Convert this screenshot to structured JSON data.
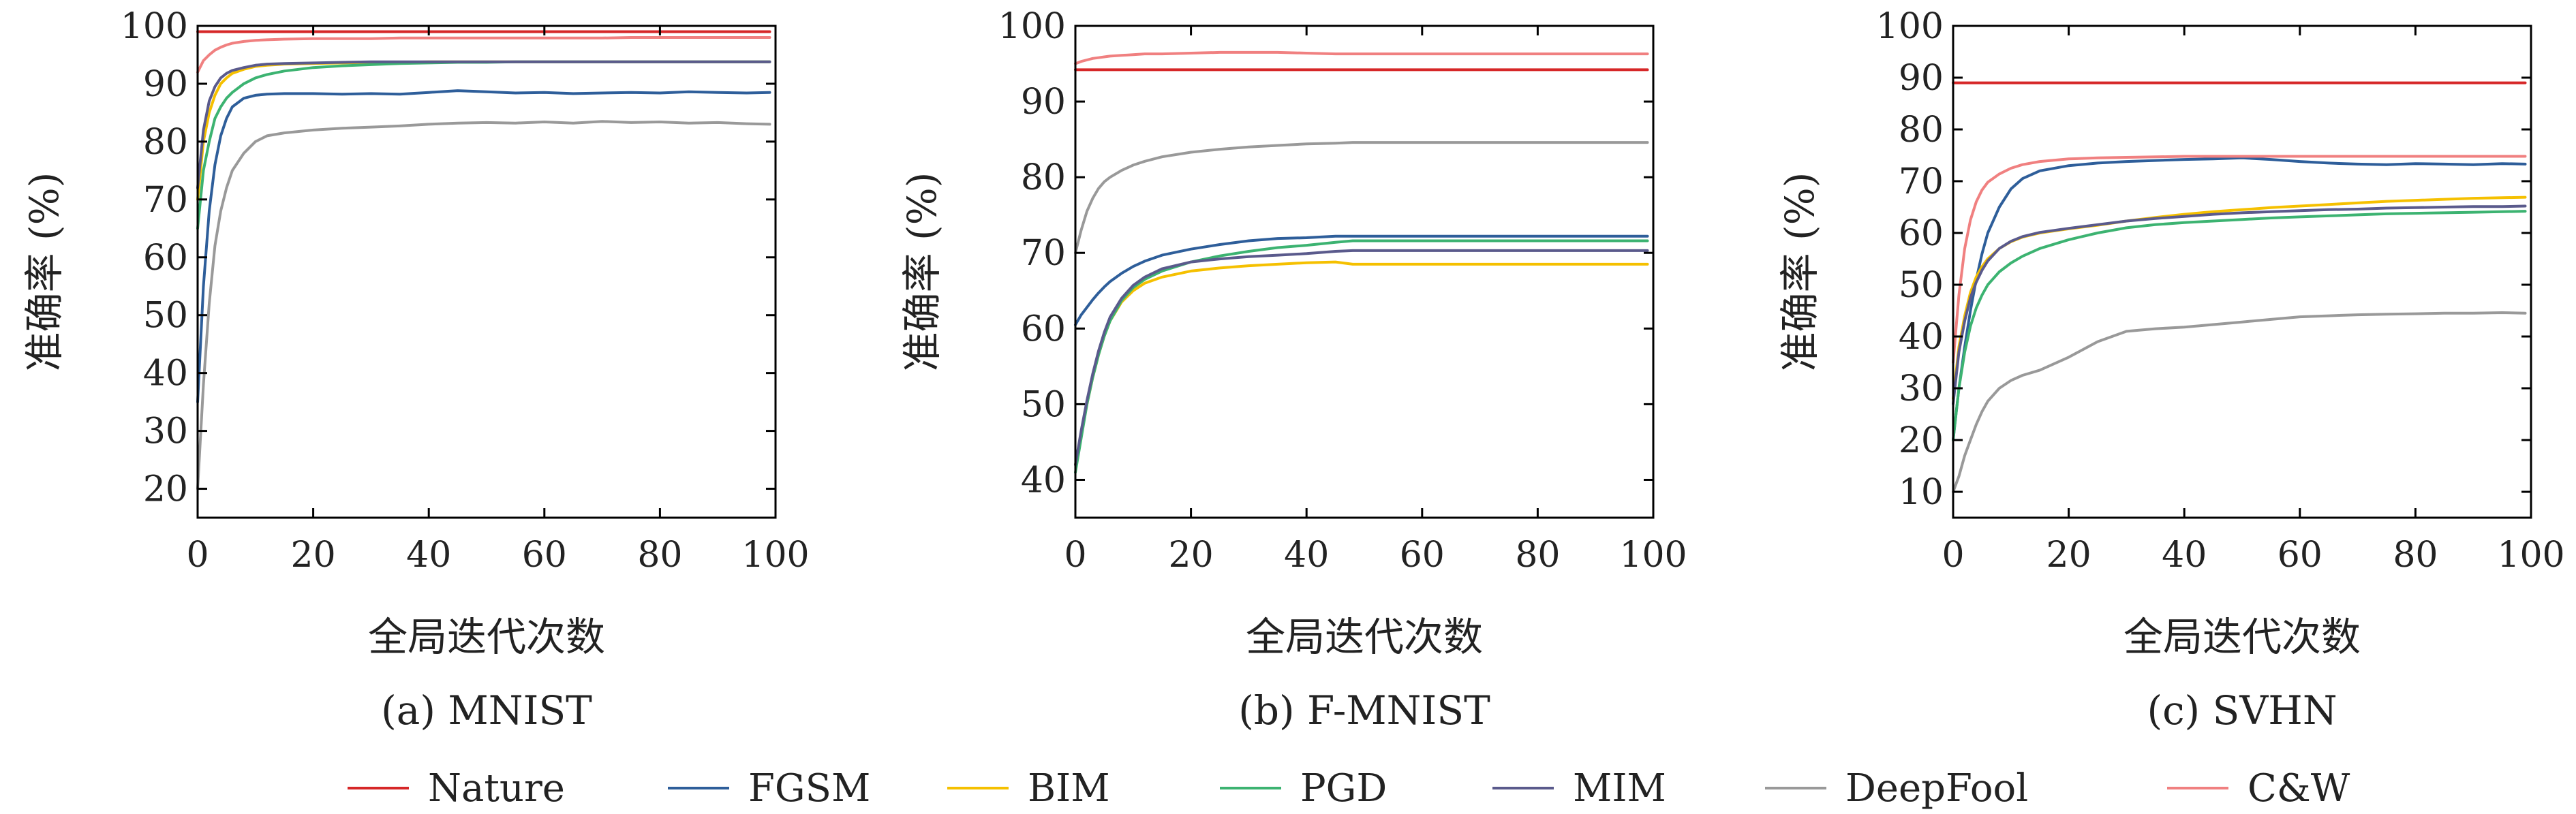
{
  "chart_data": [
    {
      "type": "line",
      "caption": "(a) MNIST",
      "xlabel": "全局迭代次数",
      "ylabel": "准确率 (%)",
      "xlim": [
        0,
        100
      ],
      "ylim": [
        15,
        100
      ],
      "xticks": [
        0,
        20,
        40,
        60,
        80,
        100
      ],
      "yticks": [
        20,
        30,
        40,
        50,
        60,
        70,
        80,
        90,
        100
      ],
      "x": [
        0,
        1,
        2,
        3,
        4,
        5,
        6,
        8,
        10,
        12,
        15,
        20,
        25,
        30,
        35,
        40,
        45,
        50,
        55,
        60,
        65,
        70,
        75,
        80,
        85,
        90,
        95,
        99
      ],
      "series": [
        {
          "name": "Nature",
          "values": [
            99,
            99,
            99,
            99,
            99,
            99,
            99,
            99,
            99,
            99,
            99,
            99,
            99,
            99,
            99,
            99,
            99,
            99,
            99,
            99,
            99,
            99,
            99,
            99,
            99,
            99,
            99,
            99
          ]
        },
        {
          "name": "FGSM",
          "values": [
            35,
            55,
            68,
            76,
            81,
            84,
            86,
            87.5,
            88,
            88.2,
            88.3,
            88.3,
            88.2,
            88.3,
            88.2,
            88.5,
            88.8,
            88.6,
            88.4,
            88.5,
            88.3,
            88.4,
            88.5,
            88.4,
            88.6,
            88.5,
            88.4,
            88.5
          ]
        },
        {
          "name": "BIM",
          "values": [
            70,
            80,
            85,
            88,
            90,
            91,
            91.8,
            92.5,
            93,
            93.2,
            93.4,
            93.5,
            93.6,
            93.7,
            93.7,
            93.8,
            93.8,
            93.8,
            93.8,
            93.8,
            93.8,
            93.8,
            93.8,
            93.8,
            93.8,
            93.8,
            93.8,
            93.8
          ]
        },
        {
          "name": "PGD",
          "values": [
            65,
            75,
            80,
            84,
            86,
            87.5,
            88.5,
            90,
            91,
            91.6,
            92.2,
            92.8,
            93.1,
            93.3,
            93.5,
            93.6,
            93.7,
            93.7,
            93.8,
            93.8,
            93.8,
            93.8,
            93.8,
            93.8,
            93.8,
            93.8,
            93.8,
            93.8
          ]
        },
        {
          "name": "MIM",
          "values": [
            72,
            82,
            87,
            89.5,
            91,
            91.8,
            92.3,
            92.8,
            93.2,
            93.4,
            93.5,
            93.6,
            93.7,
            93.8,
            93.8,
            93.8,
            93.8,
            93.8,
            93.8,
            93.8,
            93.8,
            93.8,
            93.8,
            93.8,
            93.8,
            93.8,
            93.8,
            93.8
          ]
        },
        {
          "name": "DeepFool",
          "values": [
            20,
            38,
            52,
            62,
            68,
            72,
            75,
            78,
            80,
            81,
            81.5,
            82,
            82.3,
            82.5,
            82.7,
            83,
            83.2,
            83.3,
            83.2,
            83.4,
            83.2,
            83.5,
            83.3,
            83.4,
            83.2,
            83.3,
            83.1,
            83
          ]
        },
        {
          "name": "C&W",
          "values": [
            92,
            94,
            95,
            95.8,
            96.3,
            96.7,
            97,
            97.3,
            97.5,
            97.6,
            97.7,
            97.8,
            97.8,
            97.8,
            97.9,
            97.9,
            97.9,
            97.9,
            97.9,
            97.9,
            97.9,
            97.9,
            98,
            98,
            98,
            98,
            98,
            98
          ]
        }
      ]
    },
    {
      "type": "line",
      "caption": "(b) F-MNIST",
      "xlabel": "全局迭代次数",
      "ylabel": "准确率 (%)",
      "xlim": [
        0,
        100
      ],
      "ylim": [
        35,
        100
      ],
      "xticks": [
        0,
        20,
        40,
        60,
        80,
        100
      ],
      "yticks": [
        40,
        50,
        60,
        70,
        80,
        90,
        100
      ],
      "x": [
        0,
        1,
        2,
        3,
        4,
        5,
        6,
        8,
        10,
        12,
        15,
        20,
        25,
        30,
        35,
        40,
        45,
        48,
        50,
        55,
        60,
        65,
        70,
        75,
        80,
        85,
        90,
        95,
        99
      ],
      "series": [
        {
          "name": "Nature",
          "values": [
            94.2,
            94.2,
            94.2,
            94.2,
            94.2,
            94.2,
            94.2,
            94.2,
            94.2,
            94.2,
            94.2,
            94.2,
            94.2,
            94.2,
            94.2,
            94.2,
            94.2,
            94.2,
            94.2,
            94.2,
            94.2,
            94.2,
            94.2,
            94.2,
            94.2,
            94.2,
            94.2,
            94.2,
            94.2
          ]
        },
        {
          "name": "FGSM",
          "values": [
            60.5,
            61.8,
            62.8,
            63.8,
            64.7,
            65.5,
            66.2,
            67.3,
            68.2,
            68.9,
            69.7,
            70.5,
            71.1,
            71.6,
            71.9,
            72,
            72.2,
            72.2,
            72.2,
            72.2,
            72.2,
            72.2,
            72.2,
            72.2,
            72.2,
            72.2,
            72.2,
            72.2,
            72.2
          ]
        },
        {
          "name": "BIM",
          "values": [
            42,
            46,
            50,
            53.5,
            56.5,
            59,
            61,
            63.5,
            65,
            66,
            66.8,
            67.6,
            68,
            68.3,
            68.5,
            68.7,
            68.8,
            68.5,
            68.5,
            68.5,
            68.5,
            68.5,
            68.5,
            68.5,
            68.5,
            68.5,
            68.5,
            68.5,
            68.5
          ]
        },
        {
          "name": "PGD",
          "values": [
            41,
            45.5,
            50,
            53.5,
            56.5,
            59,
            61,
            63.7,
            65.4,
            66.5,
            67.6,
            68.8,
            69.6,
            70.2,
            70.7,
            71,
            71.4,
            71.6,
            71.6,
            71.6,
            71.6,
            71.6,
            71.6,
            71.6,
            71.6,
            71.6,
            71.6,
            71.6,
            71.6
          ]
        },
        {
          "name": "MIM",
          "values": [
            42,
            46.5,
            50.5,
            54,
            57,
            59.5,
            61.5,
            64,
            65.7,
            66.8,
            67.9,
            68.8,
            69.2,
            69.5,
            69.7,
            69.9,
            70.2,
            70.3,
            70.3,
            70.3,
            70.3,
            70.3,
            70.3,
            70.3,
            70.3,
            70.3,
            70.3,
            70.3,
            70.3
          ]
        },
        {
          "name": "DeepFool",
          "values": [
            70,
            73,
            75.5,
            77.2,
            78.5,
            79.4,
            80,
            80.9,
            81.6,
            82.1,
            82.7,
            83.3,
            83.7,
            84,
            84.2,
            84.4,
            84.5,
            84.6,
            84.6,
            84.6,
            84.6,
            84.6,
            84.6,
            84.6,
            84.6,
            84.6,
            84.6,
            84.6,
            84.6
          ]
        },
        {
          "name": "C&W",
          "values": [
            95,
            95.3,
            95.5,
            95.7,
            95.8,
            95.9,
            96,
            96.1,
            96.2,
            96.3,
            96.3,
            96.4,
            96.5,
            96.5,
            96.5,
            96.4,
            96.3,
            96.3,
            96.3,
            96.3,
            96.3,
            96.3,
            96.3,
            96.3,
            96.3,
            96.3,
            96.3,
            96.3,
            96.3
          ]
        }
      ]
    },
    {
      "type": "line",
      "caption": "(c) SVHN",
      "xlabel": "全局迭代次数",
      "ylabel": "准确率 (%)",
      "xlim": [
        0,
        100
      ],
      "ylim": [
        5,
        100
      ],
      "xticks": [
        0,
        20,
        40,
        60,
        80,
        100
      ],
      "yticks": [
        10,
        20,
        30,
        40,
        50,
        60,
        70,
        80,
        90,
        100
      ],
      "x": [
        0,
        1,
        2,
        3,
        4,
        5,
        6,
        8,
        10,
        12,
        15,
        20,
        25,
        30,
        35,
        40,
        45,
        50,
        55,
        60,
        65,
        70,
        75,
        80,
        85,
        90,
        95,
        99
      ],
      "series": [
        {
          "name": "Nature",
          "values": [
            89,
            89,
            89,
            89,
            89,
            89,
            89,
            89,
            89,
            89,
            89,
            89,
            89,
            89,
            89,
            89,
            89,
            89,
            89,
            89,
            89,
            89,
            89,
            89,
            89,
            89,
            89,
            89
          ]
        },
        {
          "name": "FGSM",
          "values": [
            20,
            30,
            38,
            45,
            51,
            56,
            60,
            65,
            68.5,
            70.5,
            72,
            73,
            73.5,
            73.8,
            74,
            74.2,
            74.3,
            74.5,
            74.2,
            73.8,
            73.5,
            73.3,
            73.2,
            73.4,
            73.3,
            73.2,
            73.4,
            73.3
          ]
        },
        {
          "name": "BIM",
          "values": [
            28,
            38,
            44,
            48.5,
            51.5,
            53.5,
            55,
            57,
            58.3,
            59.2,
            60,
            60.8,
            61.5,
            62.3,
            63,
            63.6,
            64.1,
            64.5,
            64.9,
            65.2,
            65.5,
            65.8,
            66.1,
            66.3,
            66.5,
            66.7,
            66.8,
            66.9
          ]
        },
        {
          "name": "PGD",
          "values": [
            20,
            30,
            37,
            42,
            45.5,
            48,
            50,
            52.5,
            54.2,
            55.5,
            57,
            58.7,
            60,
            61,
            61.6,
            62,
            62.3,
            62.6,
            62.9,
            63.1,
            63.3,
            63.5,
            63.7,
            63.8,
            63.9,
            64,
            64.1,
            64.2
          ]
        },
        {
          "name": "MIM",
          "values": [
            27,
            37,
            43,
            47.5,
            50.5,
            52.8,
            54.6,
            57,
            58.4,
            59.3,
            60.1,
            60.9,
            61.6,
            62.3,
            62.8,
            63.2,
            63.6,
            63.9,
            64.1,
            64.3,
            64.5,
            64.6,
            64.8,
            64.9,
            65,
            65.1,
            65.1,
            65.2
          ]
        },
        {
          "name": "DeepFool",
          "values": [
            10,
            13,
            17,
            20,
            23,
            25.5,
            27.5,
            30,
            31.5,
            32.5,
            33.5,
            36,
            39,
            41,
            41.5,
            41.8,
            42.3,
            42.8,
            43.3,
            43.8,
            44,
            44.2,
            44.3,
            44.4,
            44.5,
            44.5,
            44.6,
            44.5
          ]
        },
        {
          "name": "C&W",
          "values": [
            35,
            48,
            57,
            62.5,
            66,
            68.3,
            69.8,
            71.4,
            72.5,
            73.2,
            73.8,
            74.3,
            74.5,
            74.6,
            74.7,
            74.8,
            74.8,
            74.8,
            74.8,
            74.8,
            74.8,
            74.8,
            74.8,
            74.8,
            74.8,
            74.8,
            74.8,
            74.8
          ]
        }
      ]
    }
  ],
  "colors": {
    "Nature": "#d62728",
    "FGSM": "#2e5e9a",
    "BIM": "#f5c000",
    "PGD": "#3cb371",
    "MIM": "#5a5a8c",
    "DeepFool": "#999999",
    "C&W": "#f08080"
  },
  "legend": {
    "items": [
      "Nature",
      "FGSM",
      "BIM",
      "PGD",
      "MIM",
      "DeepFool",
      "C&W"
    ]
  }
}
